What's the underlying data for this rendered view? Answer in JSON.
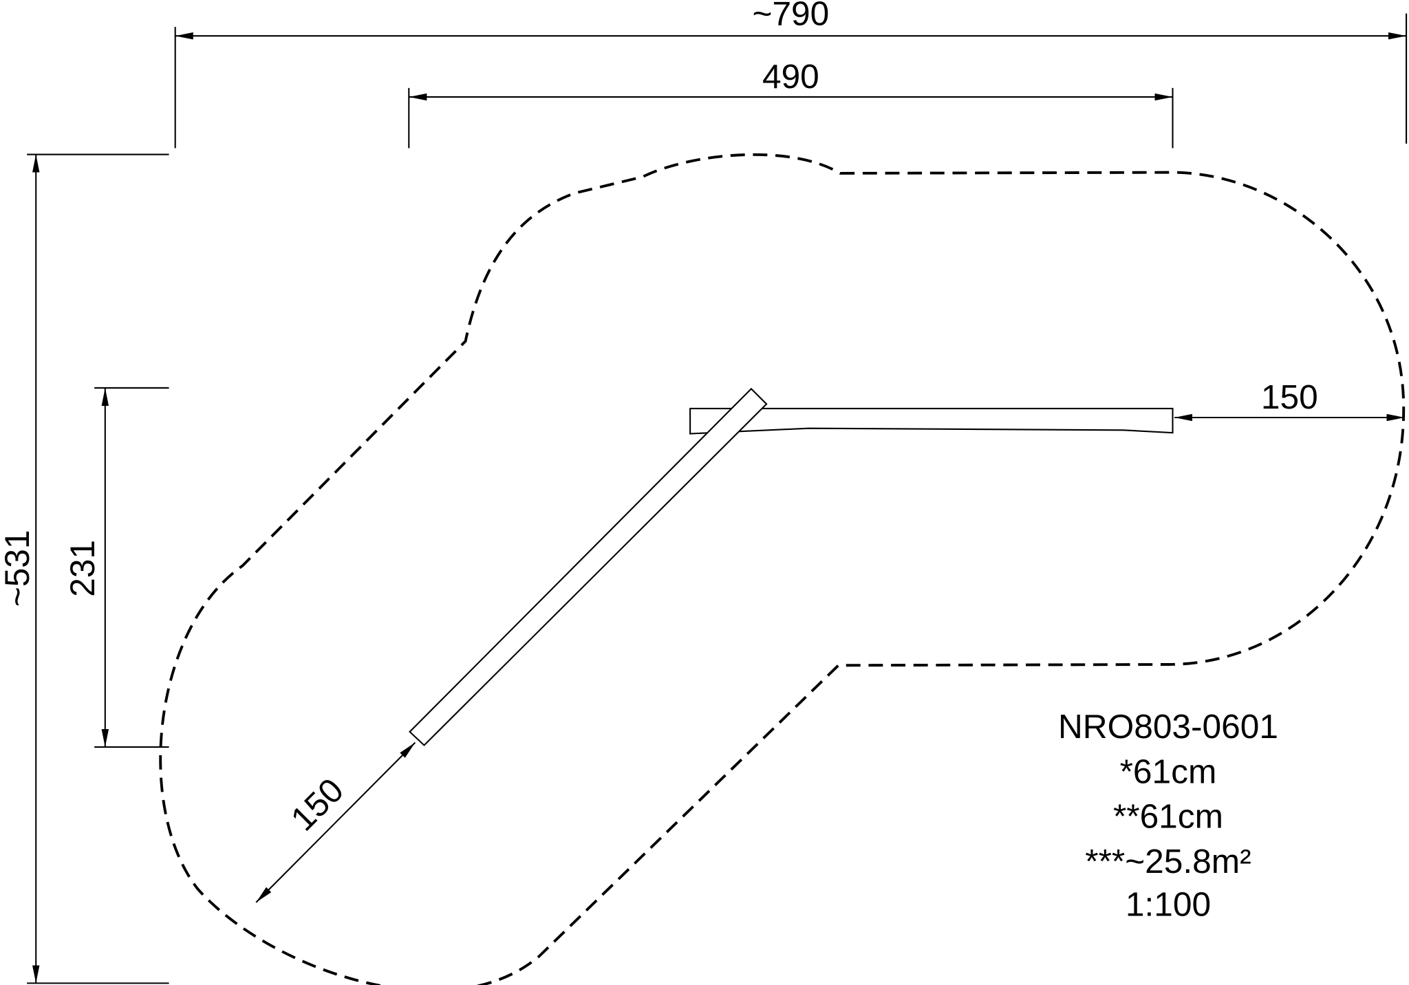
{
  "dimensions": {
    "overall_width": "~790",
    "bench_width": "490",
    "overall_depth": "~531",
    "inner_depth": "231",
    "right_clearance": "150",
    "diagonal_clearance": "150"
  },
  "info": [
    "NRO803-0601",
    "*61cm",
    "**61cm",
    "***~25.8m²",
    "1:100"
  ]
}
